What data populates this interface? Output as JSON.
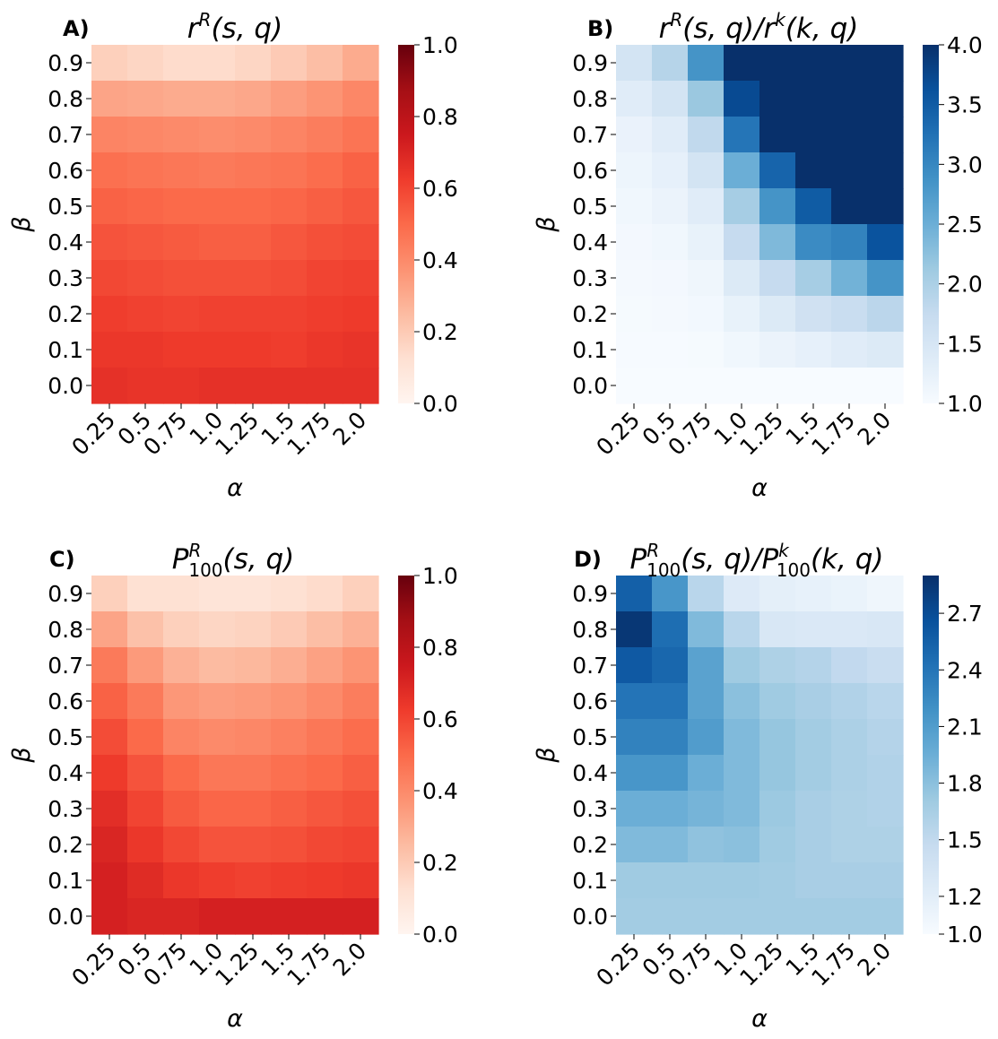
{
  "chart_data": [
    {
      "type": "heatmap",
      "panel_label": "A)",
      "title": {
        "base": "r",
        "sup": "R",
        "rest": "(s, q)"
      },
      "xlabel": "α",
      "ylabel": "β",
      "x_categories": [
        "0.25",
        "0.5",
        "0.75",
        "1.0",
        "1.25",
        "1.5",
        "1.75",
        "2.0"
      ],
      "y_categories": [
        "0.9",
        "0.8",
        "0.7",
        "0.6",
        "0.5",
        "0.4",
        "0.3",
        "0.2",
        "0.1",
        "0.0"
      ],
      "colormap": "Reds",
      "vmin": 0.0,
      "vmax": 1.0,
      "colorbar_ticks": [
        "0.0",
        "0.2",
        "0.4",
        "0.6",
        "0.8",
        "1.0"
      ],
      "values": [
        [
          0.18,
          0.16,
          0.14,
          0.14,
          0.16,
          0.2,
          0.24,
          0.3
        ],
        [
          0.32,
          0.31,
          0.3,
          0.3,
          0.31,
          0.34,
          0.37,
          0.41
        ],
        [
          0.42,
          0.41,
          0.4,
          0.39,
          0.4,
          0.42,
          0.44,
          0.47
        ],
        [
          0.48,
          0.47,
          0.46,
          0.45,
          0.46,
          0.47,
          0.49,
          0.52
        ],
        [
          0.52,
          0.51,
          0.5,
          0.5,
          0.5,
          0.51,
          0.53,
          0.55
        ],
        [
          0.56,
          0.55,
          0.54,
          0.53,
          0.53,
          0.55,
          0.57,
          0.58
        ],
        [
          0.59,
          0.58,
          0.57,
          0.57,
          0.57,
          0.58,
          0.6,
          0.61
        ],
        [
          0.62,
          0.61,
          0.6,
          0.61,
          0.61,
          0.61,
          0.62,
          0.63
        ],
        [
          0.64,
          0.64,
          0.63,
          0.63,
          0.63,
          0.62,
          0.64,
          0.65
        ],
        [
          0.66,
          0.65,
          0.65,
          0.66,
          0.66,
          0.66,
          0.66,
          0.66
        ]
      ]
    },
    {
      "type": "heatmap",
      "panel_label": "B)",
      "title": {
        "base": "r",
        "sup": "R",
        "rest": "(s, q)/",
        "base2": "r",
        "sup2": "k",
        "rest2": "(k, q)"
      },
      "xlabel": "α",
      "ylabel": "β",
      "x_categories": [
        "0.25",
        "0.5",
        "0.75",
        "1.0",
        "1.25",
        "1.5",
        "1.75",
        "2.0"
      ],
      "y_categories": [
        "0.9",
        "0.8",
        "0.7",
        "0.6",
        "0.5",
        "0.4",
        "0.3",
        "0.2",
        "0.1",
        "0.0"
      ],
      "colormap": "Blues",
      "vmin": 1.0,
      "vmax": 4.0,
      "colorbar_ticks": [
        "1.0",
        "1.5",
        "2.0",
        "2.5",
        "3.0",
        "3.5",
        "4.0"
      ],
      "values": [
        [
          1.55,
          1.9,
          2.85,
          4.0,
          4.0,
          4.0,
          4.0,
          4.0
        ],
        [
          1.35,
          1.55,
          2.15,
          3.7,
          4.0,
          4.0,
          4.0,
          4.0
        ],
        [
          1.2,
          1.35,
          1.8,
          3.2,
          4.0,
          4.0,
          4.0,
          4.0
        ],
        [
          1.15,
          1.25,
          1.55,
          2.5,
          3.4,
          4.0,
          4.0,
          4.0
        ],
        [
          1.1,
          1.18,
          1.35,
          2.05,
          2.85,
          3.5,
          4.0,
          4.0
        ],
        [
          1.06,
          1.1,
          1.22,
          1.75,
          2.35,
          2.95,
          3.05,
          3.6
        ],
        [
          1.04,
          1.06,
          1.12,
          1.4,
          1.75,
          2.05,
          2.45,
          2.85
        ],
        [
          1.03,
          1.04,
          1.07,
          1.22,
          1.4,
          1.6,
          1.7,
          1.85
        ],
        [
          1.02,
          1.02,
          1.03,
          1.1,
          1.18,
          1.25,
          1.35,
          1.4
        ],
        [
          1.0,
          1.0,
          1.0,
          1.0,
          1.0,
          1.0,
          1.0,
          1.0
        ]
      ]
    },
    {
      "type": "heatmap",
      "panel_label": "C)",
      "title": {
        "base": "P",
        "sup": "R",
        "sub": "100",
        "rest": "(s, q)"
      },
      "xlabel": "α",
      "ylabel": "β",
      "x_categories": [
        "0.25",
        "0.5",
        "0.75",
        "1.0",
        "1.25",
        "1.5",
        "1.75",
        "2.0"
      ],
      "y_categories": [
        "0.9",
        "0.8",
        "0.7",
        "0.6",
        "0.5",
        "0.4",
        "0.3",
        "0.2",
        "0.1",
        "0.0"
      ],
      "colormap": "Reds",
      "vmin": 0.0,
      "vmax": 1.0,
      "colorbar_ticks": [
        "0.0",
        "0.2",
        "0.4",
        "0.6",
        "0.8",
        "1.0"
      ],
      "values": [
        [
          0.18,
          0.12,
          0.12,
          0.1,
          0.1,
          0.12,
          0.14,
          0.18
        ],
        [
          0.32,
          0.23,
          0.18,
          0.16,
          0.17,
          0.2,
          0.24,
          0.28
        ],
        [
          0.45,
          0.35,
          0.28,
          0.25,
          0.26,
          0.29,
          0.33,
          0.37
        ],
        [
          0.52,
          0.45,
          0.36,
          0.34,
          0.35,
          0.37,
          0.4,
          0.44
        ],
        [
          0.58,
          0.5,
          0.42,
          0.4,
          0.41,
          0.43,
          0.46,
          0.49
        ],
        [
          0.63,
          0.56,
          0.5,
          0.46,
          0.46,
          0.48,
          0.5,
          0.53
        ],
        [
          0.67,
          0.6,
          0.54,
          0.51,
          0.51,
          0.53,
          0.55,
          0.57
        ],
        [
          0.7,
          0.64,
          0.59,
          0.56,
          0.56,
          0.57,
          0.59,
          0.6
        ],
        [
          0.72,
          0.68,
          0.64,
          0.62,
          0.61,
          0.62,
          0.63,
          0.64
        ],
        [
          0.72,
          0.7,
          0.7,
          0.72,
          0.72,
          0.72,
          0.72,
          0.72
        ]
      ]
    },
    {
      "type": "heatmap",
      "panel_label": "D)",
      "title": {
        "base": "P",
        "sup": "R",
        "sub": "100",
        "rest": "(s, q)/",
        "base2": "P",
        "sup2": "k",
        "sub2": "100",
        "rest2": "(k, q)"
      },
      "xlabel": "α",
      "ylabel": "β",
      "x_categories": [
        "0.25",
        "0.5",
        "0.75",
        "1.0",
        "1.25",
        "1.5",
        "1.75",
        "2.0"
      ],
      "y_categories": [
        "0.9",
        "0.8",
        "0.7",
        "0.6",
        "0.5",
        "0.4",
        "0.3",
        "0.2",
        "0.1",
        "0.0"
      ],
      "colormap": "Blues",
      "vmin": 1.0,
      "vmax": 2.9,
      "colorbar_ticks": [
        "1.0",
        "1.2",
        "1.5",
        "1.8",
        "2.1",
        "2.4",
        "2.7"
      ],
      "values": [
        [
          2.55,
          2.15,
          1.55,
          1.25,
          1.18,
          1.15,
          1.12,
          1.08
        ],
        [
          2.85,
          2.45,
          1.85,
          1.55,
          1.3,
          1.28,
          1.28,
          1.3
        ],
        [
          2.6,
          2.5,
          2.05,
          1.7,
          1.62,
          1.58,
          1.5,
          1.45
        ],
        [
          2.4,
          2.4,
          2.05,
          1.8,
          1.7,
          1.65,
          1.6,
          1.55
        ],
        [
          2.3,
          2.3,
          2.1,
          1.85,
          1.75,
          1.68,
          1.63,
          1.58
        ],
        [
          2.15,
          2.15,
          1.95,
          1.85,
          1.75,
          1.68,
          1.63,
          1.6
        ],
        [
          1.95,
          1.95,
          1.9,
          1.85,
          1.72,
          1.65,
          1.62,
          1.6
        ],
        [
          1.85,
          1.85,
          1.78,
          1.8,
          1.7,
          1.65,
          1.62,
          1.62
        ],
        [
          1.7,
          1.7,
          1.7,
          1.7,
          1.68,
          1.65,
          1.65,
          1.65
        ],
        [
          1.68,
          1.68,
          1.68,
          1.68,
          1.68,
          1.68,
          1.68,
          1.68
        ]
      ]
    }
  ]
}
